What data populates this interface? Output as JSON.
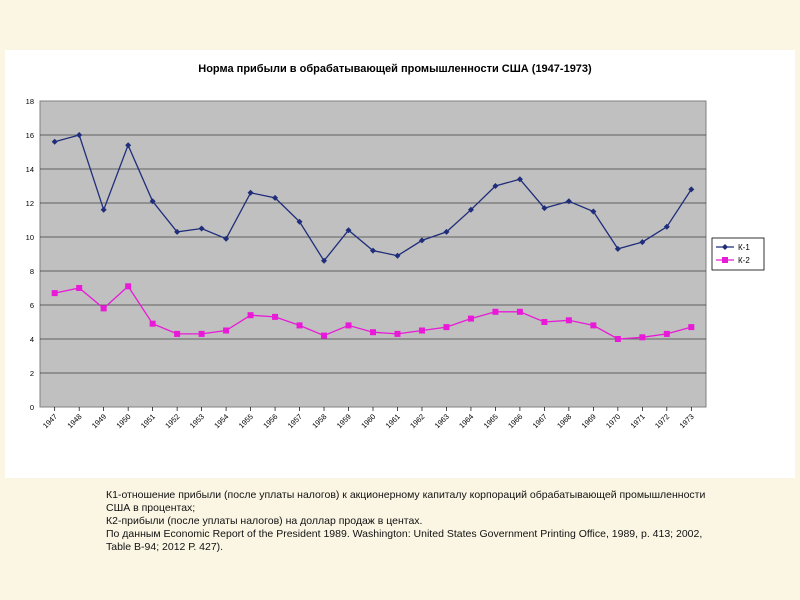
{
  "chart_data": {
    "type": "line",
    "title": "Норма прибыли в обрабатывающей промышленности США (1947-1973)",
    "categories": [
      "1947",
      "1948",
      "1949",
      "1950",
      "1951",
      "1952",
      "1953",
      "1954",
      "1955",
      "1956",
      "1957",
      "1958",
      "1959",
      "1960",
      "1961",
      "1962",
      "1963",
      "1964",
      "1965",
      "1966",
      "1967",
      "1968",
      "1969",
      "1970",
      "1971",
      "1972",
      "1973"
    ],
    "series": [
      {
        "name": "К-1",
        "color": "#1f2d7a",
        "marker": "diamond",
        "values": [
          15.6,
          16.0,
          11.6,
          15.4,
          12.1,
          10.3,
          10.5,
          9.9,
          12.6,
          12.3,
          10.9,
          8.6,
          10.4,
          9.2,
          8.9,
          9.8,
          10.3,
          11.6,
          13.0,
          13.4,
          11.7,
          12.1,
          11.5,
          9.3,
          9.7,
          10.6,
          12.8
        ]
      },
      {
        "name": "К-2",
        "color": "#e81ad8",
        "marker": "square",
        "values": [
          6.7,
          7.0,
          5.8,
          7.1,
          4.9,
          4.3,
          4.3,
          4.5,
          5.4,
          5.3,
          4.8,
          4.2,
          4.8,
          4.4,
          4.3,
          4.5,
          4.7,
          5.2,
          5.6,
          5.6,
          5.0,
          5.1,
          4.8,
          4.0,
          4.1,
          4.3,
          4.7
        ]
      }
    ],
    "ylim": [
      0,
      18
    ],
    "yticks": [
      "0",
      "2",
      "4",
      "6",
      "8",
      "10",
      "12",
      "14",
      "16",
      "18"
    ],
    "xlabel": "",
    "ylabel": "",
    "grid": true,
    "legend": "right",
    "plot_background": "#c0c0c0"
  },
  "caption": {
    "line1": "К1-отношение прибыли (после уплаты налогов) к акционерному капиталу корпораций обрабатывающей промышленности США в процентах;",
    "line2": "К2-прибыли (после уплаты налогов) на доллар продаж в центах.",
    "line3": "По данным Economic Report of the President 1989. Washington: United States  Government Printing Office, 1989, p. 413; 2002, Table B-94; 2012 Р. 427)."
  }
}
